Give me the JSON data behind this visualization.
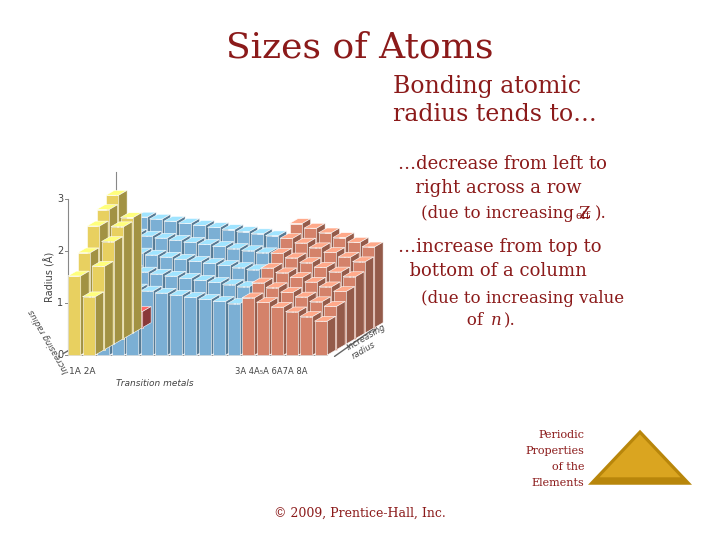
{
  "title": "Sizes of Atoms",
  "title_color": "#8B1A1A",
  "title_fontsize": 26,
  "bg_color": "#FFFFFF",
  "text_color": "#8B1A1A",
  "heading": "Bonding atomic\nradius tends to…",
  "heading_fontsize": 17,
  "bullet1_main": "…decrease from left to\n   right across a row",
  "bullet1_sub_prefix": "(due to increasing Z",
  "bullet1_sub_script": "eff",
  "bullet1_sub_suffix": ").",
  "bullet2_main": "…increase from top to\n  bottom of a column",
  "bullet2_sub1": "(due to increasing value",
  "bullet2_sub2_prefix": "   of ",
  "bullet2_sub2_italic": "n",
  "bullet2_sub2_suffix": ").",
  "copyright": "© 2009, Prentice-Hall, Inc.",
  "badge_text_lines": [
    "Periodic",
    "Properties",
    "of the",
    "Elements"
  ],
  "badge_color_outer": "#B8860B",
  "badge_color_inner": "#DAA520",
  "badge_text_color": "#8B1A1A",
  "yellow_color": "#E8D060",
  "blue_color": "#7BAFD4",
  "salmon_color": "#D4826A",
  "red_color": "#C45050",
  "axis_color": "#888888",
  "grid_color": "#CCCCCC"
}
